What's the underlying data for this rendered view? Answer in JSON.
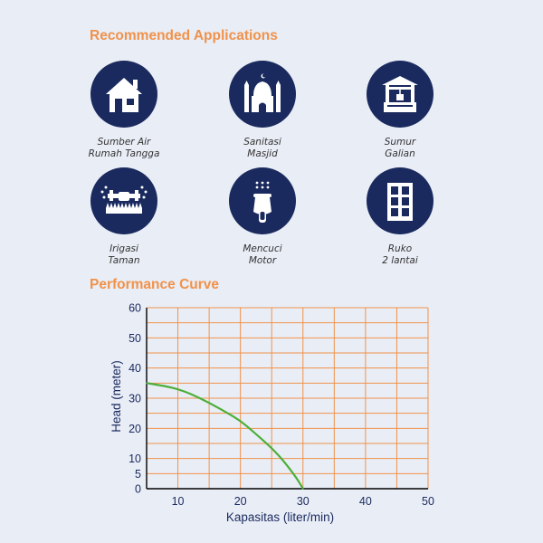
{
  "sections": {
    "applications_title": "Recommended Applications",
    "performance_title": "Performance Curve"
  },
  "applications": [
    {
      "icon": "house-icon",
      "line1": "Sumber Air",
      "line2": "Rumah Tangga"
    },
    {
      "icon": "mosque-icon",
      "line1": "Sanitasi",
      "line2": "Masjid"
    },
    {
      "icon": "well-icon",
      "line1": "Sumur",
      "line2": "Galian"
    },
    {
      "icon": "sprinkler-irrigation-icon",
      "line1": "Irigasi",
      "line2": "Taman"
    },
    {
      "icon": "motorcycle-wash-icon",
      "line1": "Mencuci",
      "line2": "Motor"
    },
    {
      "icon": "building-icon",
      "line1": "Ruko",
      "line2": "2 lantai"
    }
  ],
  "colors": {
    "accent": "#f0924a",
    "icon_circle": "#1a2a5e",
    "background": "#e9edf6",
    "grid": "#f0924a",
    "curve": "#4caf3a"
  },
  "chart_data": {
    "type": "line",
    "title": "Performance Curve",
    "xlabel": "Kapasitas (liter/min)",
    "ylabel": "Head (meter)",
    "xlim": [
      5,
      50
    ],
    "ylim": [
      0,
      60
    ],
    "x_ticks": [
      10,
      20,
      30,
      40,
      50
    ],
    "y_ticks": [
      0,
      5,
      10,
      20,
      30,
      40,
      50,
      60
    ],
    "grid": true,
    "series": [
      {
        "x": [
          5,
          8,
          10,
          12,
          15,
          18,
          20,
          22,
          25,
          27,
          29,
          30
        ],
        "y": [
          35,
          34,
          33,
          31.5,
          28.5,
          25,
          22.5,
          19,
          13.5,
          9,
          3.5,
          0
        ]
      }
    ]
  }
}
